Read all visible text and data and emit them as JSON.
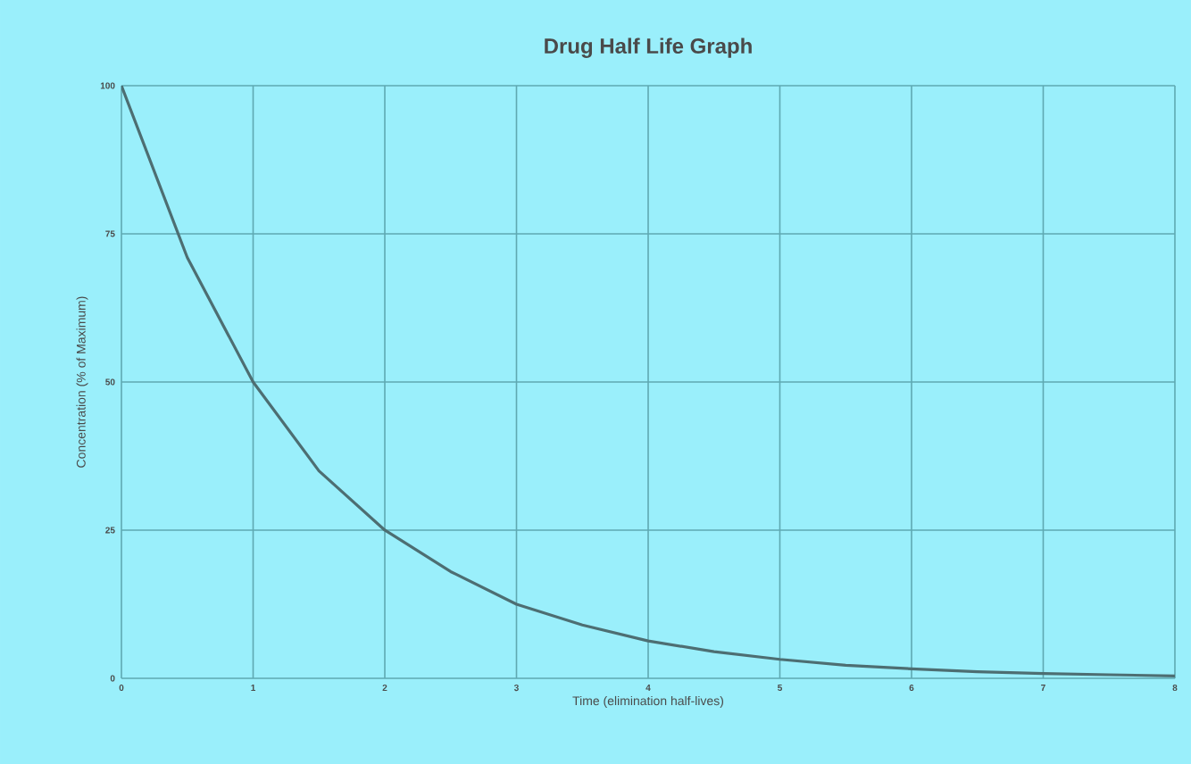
{
  "chart_data": {
    "type": "line",
    "title": "Drug Half Life Graph",
    "xlabel": "Time (elimination half-lives)",
    "ylabel": "Concentration (% of Maximum)",
    "series": [
      {
        "color": "#4d6e72",
        "x": [
          0,
          0.5,
          1,
          1.5,
          2,
          2.5,
          3,
          3.5,
          4,
          4.5,
          5,
          5.5,
          6,
          6.5,
          7,
          7.5,
          8
        ],
        "values": [
          100,
          71,
          50,
          35,
          25,
          18,
          12.5,
          9,
          6.3,
          4.5,
          3.2,
          2.2,
          1.6,
          1.1,
          0.8,
          0.6,
          0.4
        ]
      }
    ],
    "xlim": [
      0,
      8
    ],
    "ylim": [
      0,
      100
    ],
    "xticks": [
      0,
      1,
      2,
      3,
      4,
      5,
      6,
      7,
      8
    ],
    "yticks": [
      0,
      25,
      50,
      75,
      100
    ],
    "grid": true,
    "marker": "none",
    "line_style": "solid"
  }
}
